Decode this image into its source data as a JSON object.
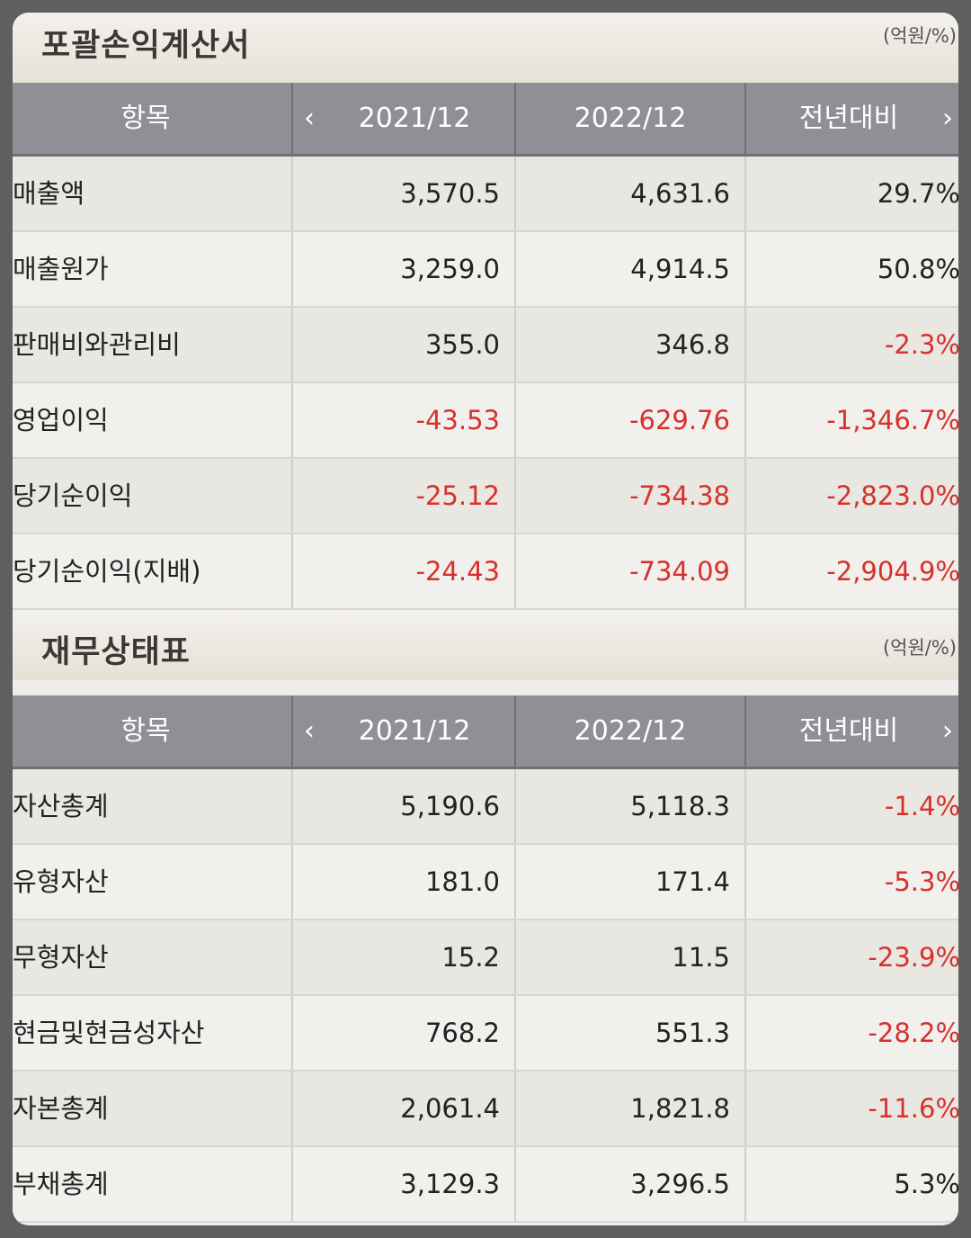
{
  "sections": [
    {
      "title": "포괄손익계산서",
      "unit": "(억원/%)",
      "headers": {
        "item": "항목",
        "col1": "2021/12",
        "col2": "2022/12",
        "col3": "전년대비"
      },
      "rows": [
        {
          "name": "매출액",
          "v1": "3,570.5",
          "v2": "4,631.6",
          "v3": "29.7%"
        },
        {
          "name": "매출원가",
          "v1": "3,259.0",
          "v2": "4,914.5",
          "v3": "50.8%"
        },
        {
          "name": "판매비와관리비",
          "v1": "355.0",
          "v2": "346.8",
          "v3": "-2.3%"
        },
        {
          "name": "영업이익",
          "v1": "-43.53",
          "v2": "-629.76",
          "v3": "-1,346.7%"
        },
        {
          "name": "당기순이익",
          "v1": "-25.12",
          "v2": "-734.38",
          "v3": "-2,823.0%"
        },
        {
          "name": "당기순이익(지배)",
          "v1": "-24.43",
          "v2": "-734.09",
          "v3": "-2,904.9%"
        }
      ]
    },
    {
      "title": "재무상태표",
      "unit": "(억원/%)",
      "headers": {
        "item": "항목",
        "col1": "2021/12",
        "col2": "2022/12",
        "col3": "전년대비"
      },
      "rows": [
        {
          "name": "자산총계",
          "v1": "5,190.6",
          "v2": "5,118.3",
          "v3": "-1.4%"
        },
        {
          "name": "유형자산",
          "v1": "181.0",
          "v2": "171.4",
          "v3": "-5.3%"
        },
        {
          "name": "무형자산",
          "v1": "15.2",
          "v2": "11.5",
          "v3": "-23.9%"
        },
        {
          "name": "현금및현금성자산",
          "v1": "768.2",
          "v2": "551.3",
          "v3": "-28.2%"
        },
        {
          "name": "자본총계",
          "v1": "2,061.4",
          "v2": "1,821.8",
          "v3": "-11.6%"
        },
        {
          "name": "부채총계",
          "v1": "3,129.3",
          "v2": "3,296.5",
          "v3": "5.3%"
        }
      ]
    }
  ],
  "icons": {
    "prev": "chevron-left-icon",
    "next": "chevron-right-icon"
  },
  "colors": {
    "negative": "#d8302a",
    "header_bg": "#8f9095"
  }
}
